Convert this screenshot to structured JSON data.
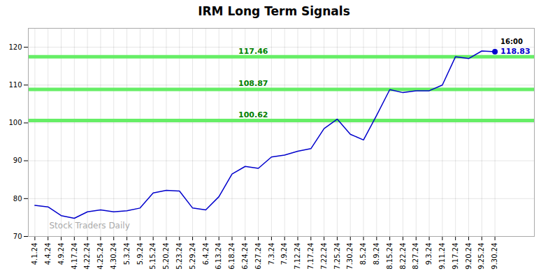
{
  "chart_data": {
    "type": "line",
    "title": "IRM Long Term Signals",
    "categories": [
      "4.1.24",
      "4.4.24",
      "4.9.24",
      "4.17.24",
      "4.22.24",
      "4.25.24",
      "4.30.24",
      "5.3.24",
      "5.9.24",
      "5.15.24",
      "5.20.24",
      "5.23.24",
      "5.29.24",
      "6.4.24",
      "6.13.24",
      "6.18.24",
      "6.24.24",
      "6.27.24",
      "7.3.24",
      "7.9.24",
      "7.12.24",
      "7.17.24",
      "7.22.24",
      "7.25.24",
      "7.30.24",
      "8.5.24",
      "8.9.24",
      "8.15.24",
      "8.22.24",
      "8.27.24",
      "9.3.24",
      "9.11.24",
      "9.17.24",
      "9.20.24",
      "9.25.24",
      "9.30.24"
    ],
    "values": [
      78.2,
      77.8,
      75.5,
      74.8,
      76.5,
      77.0,
      76.5,
      76.8,
      77.5,
      81.5,
      82.2,
      82.0,
      77.5,
      77.0,
      80.5,
      86.5,
      88.5,
      88.0,
      91.0,
      91.5,
      92.5,
      93.2,
      98.5,
      101.0,
      97.0,
      95.5,
      102.0,
      108.8,
      108.0,
      108.5,
      108.5,
      110.0,
      117.5,
      117.0,
      119.0,
      118.83
    ],
    "color": "#0000cc",
    "hlines": [
      {
        "value": 117.46,
        "label": "117.46",
        "color": "#66ee66",
        "label_color": "green"
      },
      {
        "value": 108.87,
        "label": "108.87",
        "color": "#66ee66",
        "label_color": "green"
      },
      {
        "value": 100.62,
        "label": "100.62",
        "color": "#66ee66",
        "label_color": "green"
      }
    ],
    "annotations": [
      {
        "text": "16:00",
        "color": "black"
      },
      {
        "text": "118.83",
        "color": "#0000cc"
      }
    ],
    "watermark": "Stock Traders Daily",
    "ylim": [
      70,
      125
    ],
    "yticks": [
      70,
      80,
      90,
      100,
      110,
      120
    ],
    "grid": true
  }
}
